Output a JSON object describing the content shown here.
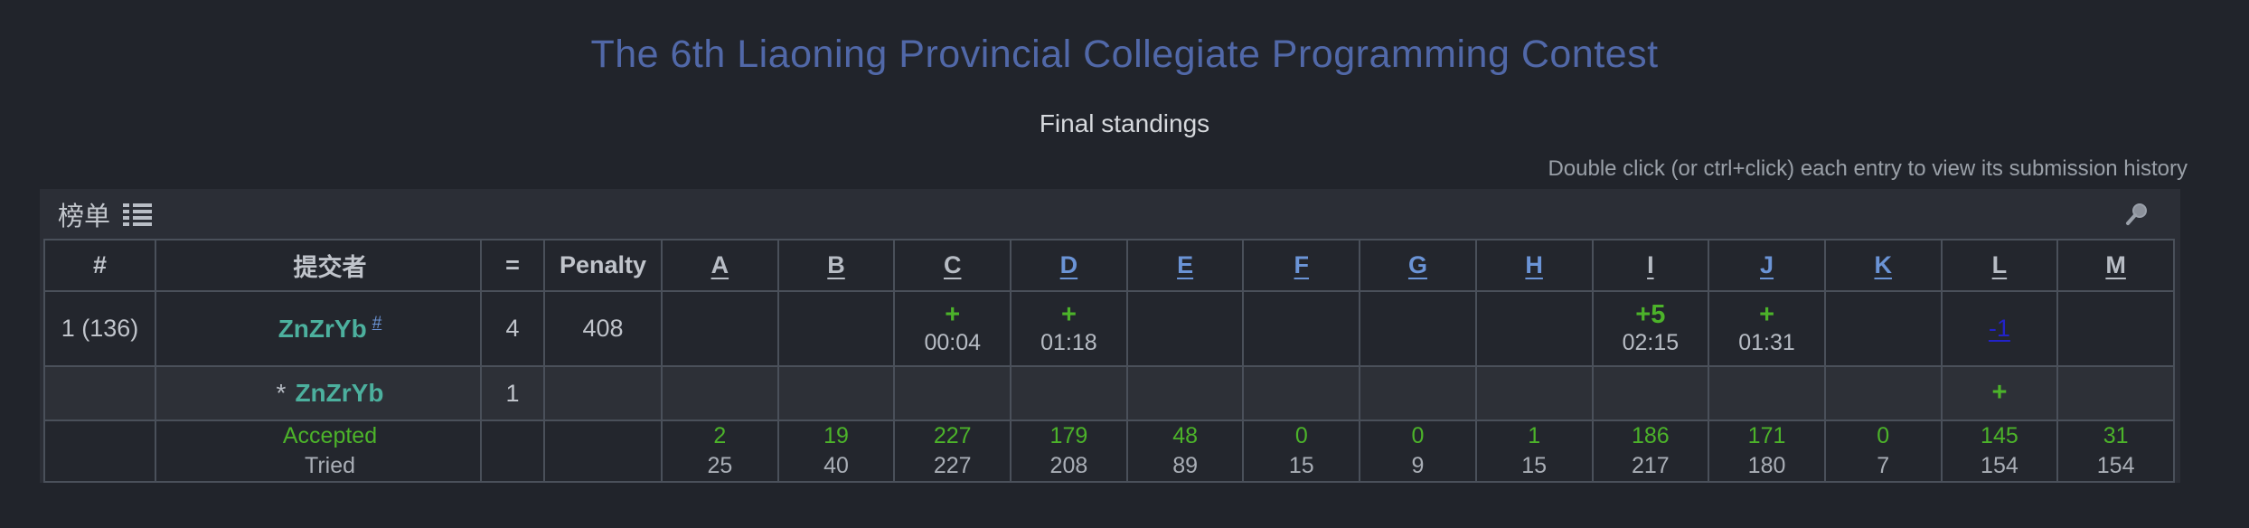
{
  "page": {
    "title": "The 6th Liaoning Provincial Collegiate Programming Contest",
    "subtitle": "Final standings",
    "hint": "Double click (or ctrl+click) each entry to view its submission history"
  },
  "board": {
    "label": "榜单",
    "icons": {
      "list": "list-icon",
      "search": "search-icon"
    }
  },
  "colors": {
    "title_accent": "#5168a8",
    "accepted_green": "#4cb32a",
    "pending_navy": "#2222c8",
    "team_teal": "#4cb09e",
    "link_blue": "#6b94d6",
    "link_gray": "#b7bcc4"
  },
  "table": {
    "headers": {
      "rank": "#",
      "submitter": "提交者",
      "solved": "=",
      "penalty": "Penalty"
    },
    "problems": [
      {
        "label": "A",
        "color": "gray"
      },
      {
        "label": "B",
        "color": "gray"
      },
      {
        "label": "C",
        "color": "gray"
      },
      {
        "label": "D",
        "color": "blue"
      },
      {
        "label": "E",
        "color": "blue"
      },
      {
        "label": "F",
        "color": "blue"
      },
      {
        "label": "G",
        "color": "blue"
      },
      {
        "label": "H",
        "color": "blue"
      },
      {
        "label": "I",
        "color": "gray"
      },
      {
        "label": "J",
        "color": "blue"
      },
      {
        "label": "K",
        "color": "blue"
      },
      {
        "label": "L",
        "color": "gray"
      },
      {
        "label": "M",
        "color": "gray"
      }
    ],
    "team_rows": [
      {
        "rank": "1 (136)",
        "name": "ZnZrYb",
        "name_suffix_link": "#",
        "solved": "4",
        "penalty": "408",
        "results": {
          "C": {
            "mark": "+",
            "mark_color": "green",
            "time": "00:04"
          },
          "D": {
            "mark": "+",
            "mark_color": "green",
            "time": "01:18"
          },
          "I": {
            "mark": "+5",
            "mark_color": "green",
            "time": "02:15"
          },
          "J": {
            "mark": "+",
            "mark_color": "green",
            "time": "01:31"
          },
          "L": {
            "mark": "-1",
            "mark_color": "navy"
          }
        }
      },
      {
        "rank": "",
        "name_prefix": "*",
        "name": "ZnZrYb",
        "solved": "1",
        "penalty": "",
        "results": {
          "L": {
            "mark": "+",
            "mark_color": "green"
          }
        }
      }
    ],
    "summary_row": {
      "accepted_label": "Accepted",
      "tried_label": "Tried",
      "stats": {
        "A": {
          "accepted": "2",
          "tried": "25"
        },
        "B": {
          "accepted": "19",
          "tried": "40"
        },
        "C": {
          "accepted": "227",
          "tried": "227"
        },
        "D": {
          "accepted": "179",
          "tried": "208"
        },
        "E": {
          "accepted": "48",
          "tried": "89"
        },
        "F": {
          "accepted": "0",
          "tried": "15"
        },
        "G": {
          "accepted": "0",
          "tried": "9"
        },
        "H": {
          "accepted": "1",
          "tried": "15"
        },
        "I": {
          "accepted": "186",
          "tried": "217"
        },
        "J": {
          "accepted": "171",
          "tried": "180"
        },
        "K": {
          "accepted": "0",
          "tried": "7"
        },
        "L": {
          "accepted": "145",
          "tried": "154"
        },
        "M": {
          "accepted": "31",
          "tried": "154"
        }
      }
    }
  }
}
